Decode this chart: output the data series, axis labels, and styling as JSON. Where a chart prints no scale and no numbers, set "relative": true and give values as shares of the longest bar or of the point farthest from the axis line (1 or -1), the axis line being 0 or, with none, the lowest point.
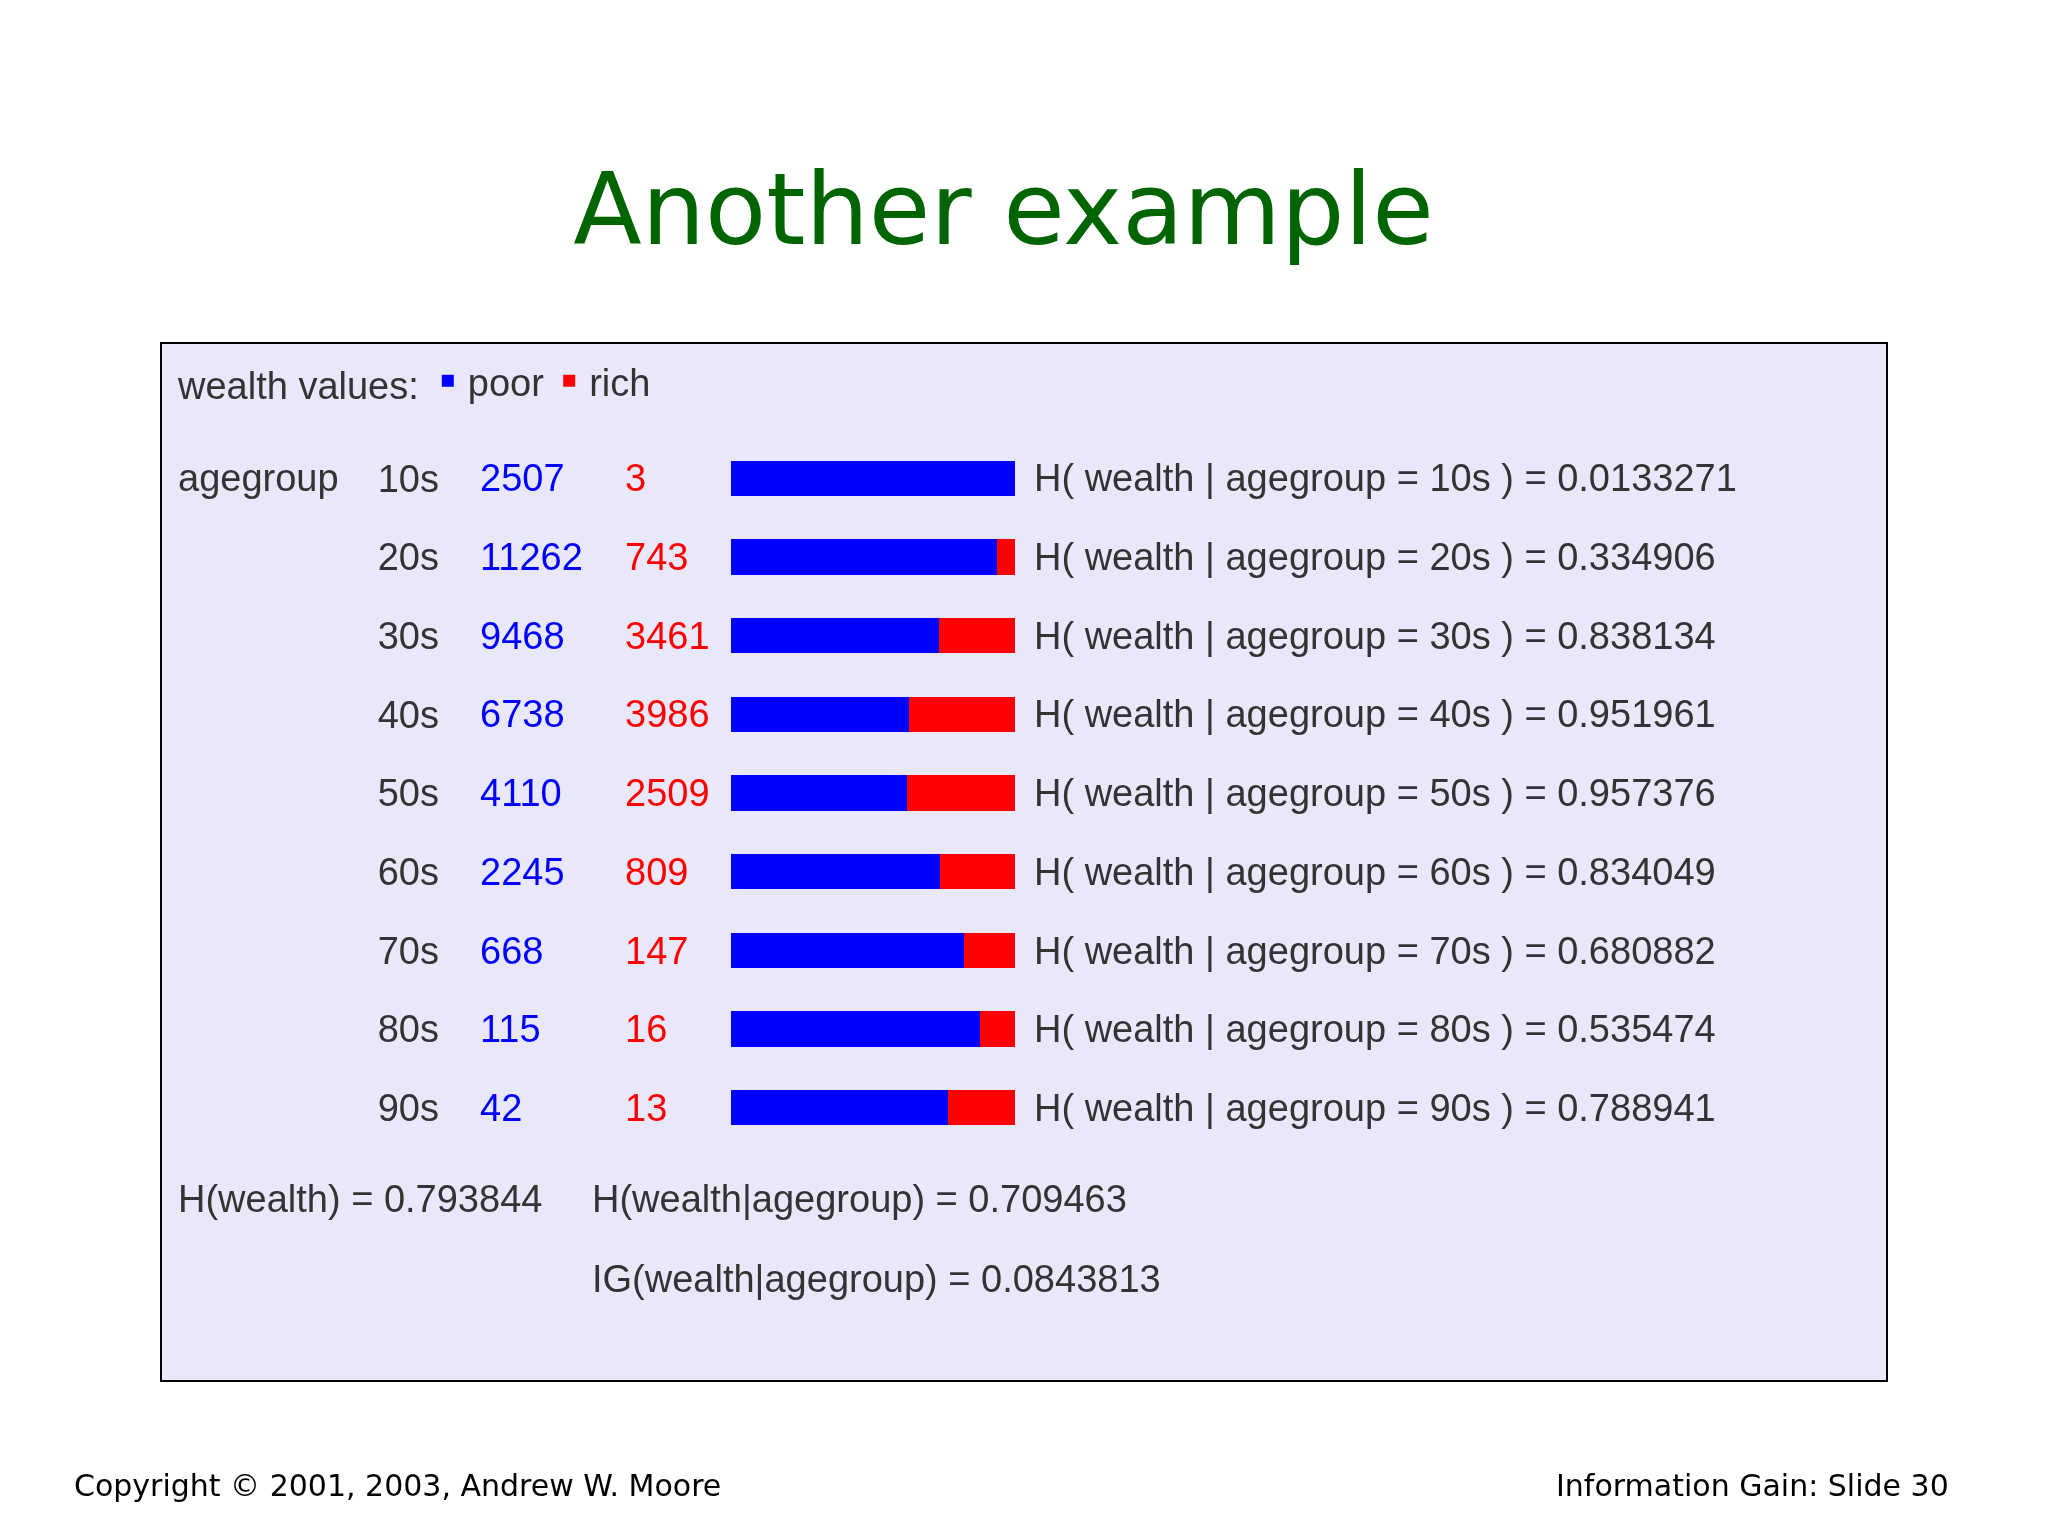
{
  "chart_data": {
    "type": "bar",
    "orientation": "horizontal",
    "stacked": true,
    "relative": true,
    "title": "Another example",
    "ylabel": "agegroup",
    "legend_title": "wealth values:",
    "legend": "top left",
    "categories": [
      "10s",
      "20s",
      "30s",
      "40s",
      "50s",
      "60s",
      "70s",
      "80s",
      "90s"
    ],
    "series": [
      {
        "name": "poor",
        "color": "#0000ff",
        "values": [
          0.9988,
          0.9381,
          0.7323,
          0.6283,
          0.6209,
          0.7351,
          0.8196,
          0.8779,
          0.7636
        ]
      },
      {
        "name": "rich",
        "color": "#ff0000",
        "values": [
          null,
          0.0619,
          0.2677,
          0.3717,
          0.3791,
          0.2649,
          0.1804,
          0.1221,
          0.2364
        ]
      }
    ],
    "annotations": [
      "2507",
      "3",
      "11262",
      "743",
      "9468",
      "3461",
      "6738",
      "3986",
      "4110",
      "2509",
      "2245",
      "809",
      "668",
      "147",
      "115",
      "16",
      "42",
      "13",
      "H( wealth | agegroup = 10s ) = 0.0133271",
      "H( wealth | agegroup = 20s ) = 0.334906",
      "H( wealth | agegroup = 30s ) = 0.838134",
      "H( wealth | agegroup = 40s ) = 0.951961",
      "H( wealth | agegroup = 50s ) = 0.957376",
      "H( wealth | agegroup = 60s ) = 0.834049",
      "H( wealth | agegroup = 70s ) = 0.680882",
      "H( wealth | agegroup = 80s ) = 0.535474",
      "H( wealth | agegroup = 90s ) = 0.788941",
      "H(wealth) = 0.793844",
      "H(wealth|agegroup) = 0.709463",
      "IG(wealth|agegroup) = 0.0843813",
      "Copyright © 2001, 2003, Andrew W. Moore",
      "Information Gain: Slide 30"
    ]
  }
}
